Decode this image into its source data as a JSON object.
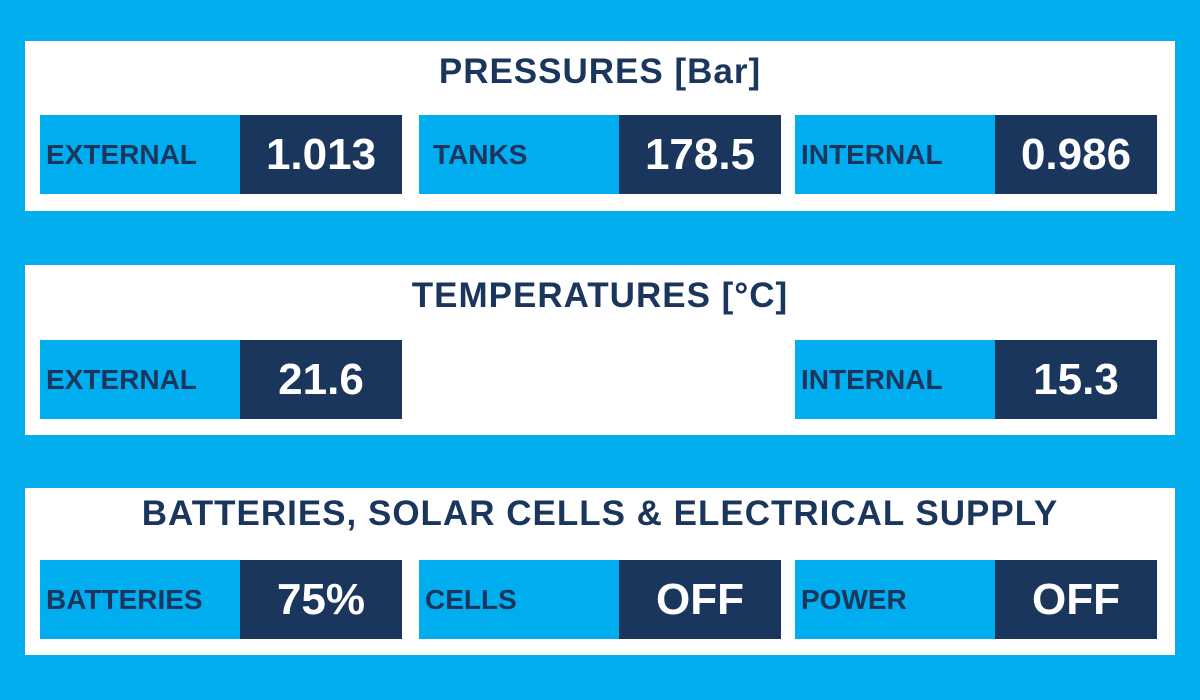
{
  "panels": [
    {
      "title": "PRESSURES [Bar]",
      "items": [
        {
          "label": "EXTERNAL",
          "value": 1.013
        },
        {
          "label": "TANKS",
          "value": 178.5
        },
        {
          "label": "INTERNAL",
          "value": 0.986
        }
      ]
    },
    {
      "title": "TEMPERATURES [°C]",
      "items": [
        {
          "label": "EXTERNAL",
          "value": 21.6
        },
        {
          "label": "INTERNAL",
          "value": 15.3
        }
      ]
    },
    {
      "title": "BATTERIES, SOLAR CELLS & ELECTRICAL SUPPLY",
      "items": [
        {
          "label": "BATTERIES",
          "value": "75%"
        },
        {
          "label": "CELLS",
          "value": "OFF"
        },
        {
          "label": "POWER",
          "value": "OFF"
        }
      ]
    }
  ]
}
